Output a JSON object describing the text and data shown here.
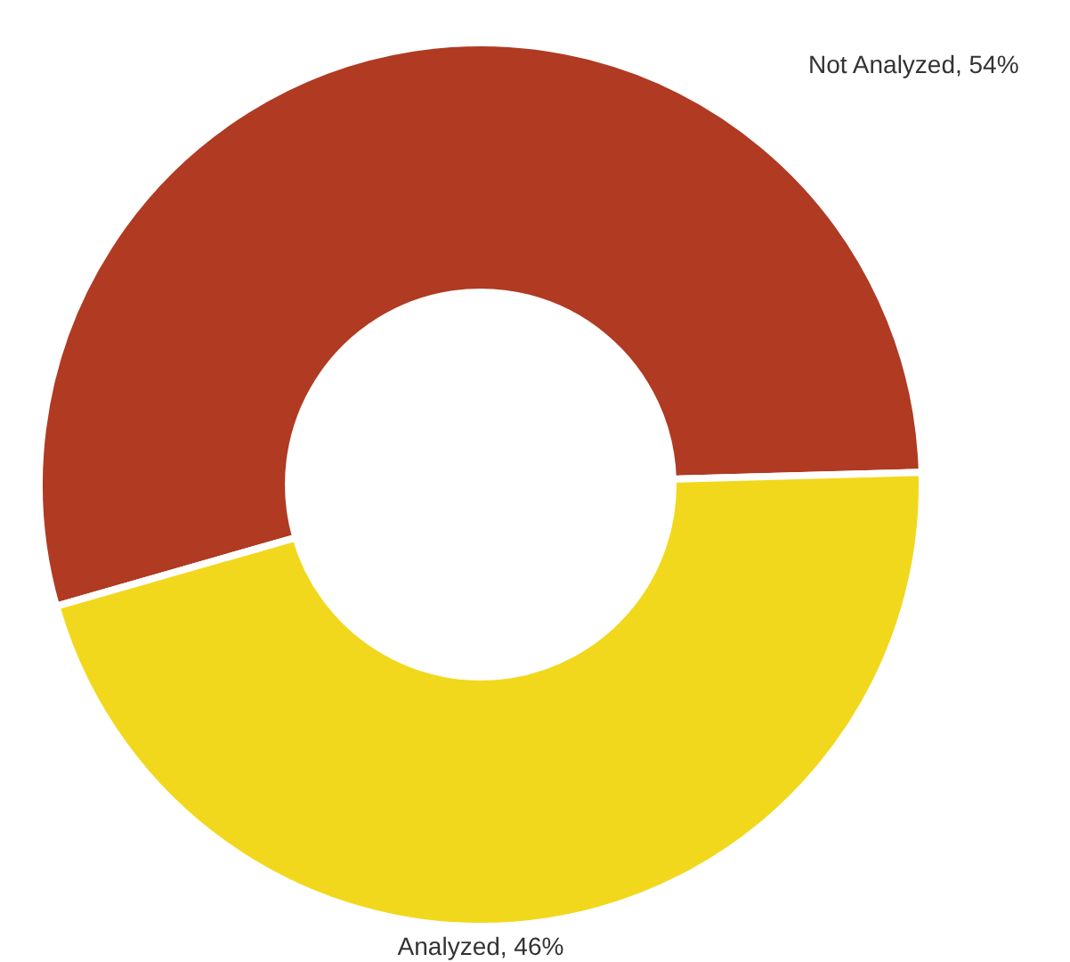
{
  "chart_data": {
    "type": "donut",
    "categories": [
      "Not Analyzed",
      "Analyzed"
    ],
    "values": [
      54,
      46
    ],
    "value_labels": [
      "54%",
      "46%"
    ],
    "colors": [
      "#b03a22",
      "#f2d81c"
    ],
    "legend": false
  }
}
